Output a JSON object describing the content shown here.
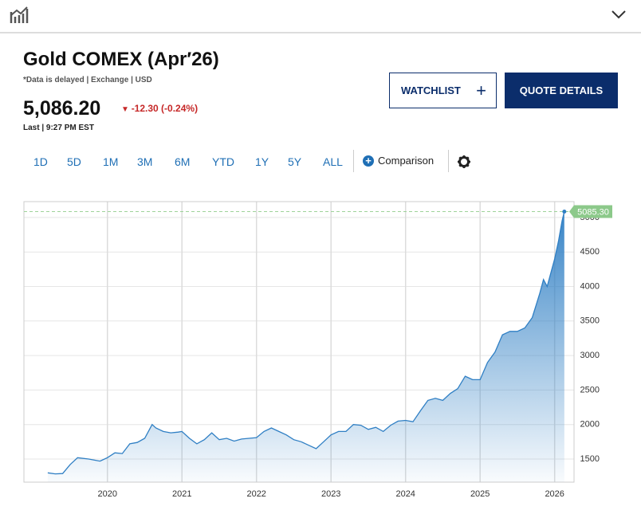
{
  "header": {
    "title": "Gold COMEX (Apr′26)",
    "subtitle": "*Data is delayed | Exchange | USD",
    "price": "5,086.20",
    "change": "-12.30 (-0.24%)",
    "last": "Last | 9:27 PM EST",
    "watchlist": "WATCHLIST",
    "quote_details": "QUOTE DETAILS"
  },
  "ranges": [
    "1D",
    "5D",
    "1M",
    "3M",
    "6M",
    "YTD",
    "1Y",
    "5Y",
    "ALL"
  ],
  "comparison": "Comparison",
  "chart_data": {
    "type": "area",
    "color": "#2f7fc4",
    "x": [
      2019.2,
      2019.3,
      2019.4,
      2019.5,
      2019.6,
      2019.75,
      2019.9,
      2020.0,
      2020.1,
      2020.2,
      2020.3,
      2020.4,
      2020.5,
      2020.6,
      2020.65,
      2020.75,
      2020.85,
      2020.95,
      2021.0,
      2021.1,
      2021.2,
      2021.3,
      2021.4,
      2021.5,
      2021.6,
      2021.7,
      2021.8,
      2021.9,
      2022.0,
      2022.1,
      2022.2,
      2022.3,
      2022.4,
      2022.5,
      2022.6,
      2022.7,
      2022.8,
      2022.9,
      2023.0,
      2023.1,
      2023.2,
      2023.3,
      2023.4,
      2023.5,
      2023.6,
      2023.7,
      2023.8,
      2023.9,
      2024.0,
      2024.1,
      2024.2,
      2024.3,
      2024.4,
      2024.5,
      2024.6,
      2024.7,
      2024.8,
      2024.9,
      2025.0,
      2025.1,
      2025.2,
      2025.3,
      2025.4,
      2025.5,
      2025.6,
      2025.7,
      2025.8,
      2025.85,
      2025.9,
      2025.95,
      2026.0,
      2026.05,
      2026.1,
      2026.13
    ],
    "values": [
      1300,
      1285,
      1290,
      1420,
      1520,
      1500,
      1470,
      1520,
      1590,
      1580,
      1720,
      1740,
      1800,
      2000,
      1950,
      1900,
      1880,
      1890,
      1900,
      1800,
      1720,
      1780,
      1880,
      1780,
      1800,
      1760,
      1790,
      1800,
      1810,
      1900,
      1950,
      1900,
      1850,
      1780,
      1750,
      1700,
      1650,
      1750,
      1850,
      1900,
      1900,
      2000,
      1990,
      1930,
      1960,
      1900,
      1990,
      2050,
      2060,
      2040,
      2200,
      2350,
      2380,
      2350,
      2450,
      2520,
      2700,
      2650,
      2650,
      2900,
      3050,
      3300,
      3350,
      3350,
      3400,
      3550,
      3900,
      4100,
      4000,
      4200,
      4400,
      4650,
      4950,
      5085.3
    ],
    "annotation": {
      "value": 5085.3,
      "label": "5085.30"
    },
    "xlim": [
      2018.88,
      2026.26
    ],
    "xticks": [
      2020,
      2021,
      2022,
      2023,
      2024,
      2025,
      2026
    ],
    "ylim": [
      1165,
      5230
    ],
    "yticks": [
      1500,
      2000,
      2500,
      3000,
      3500,
      4000,
      4500,
      5000
    ],
    "grid": true
  }
}
